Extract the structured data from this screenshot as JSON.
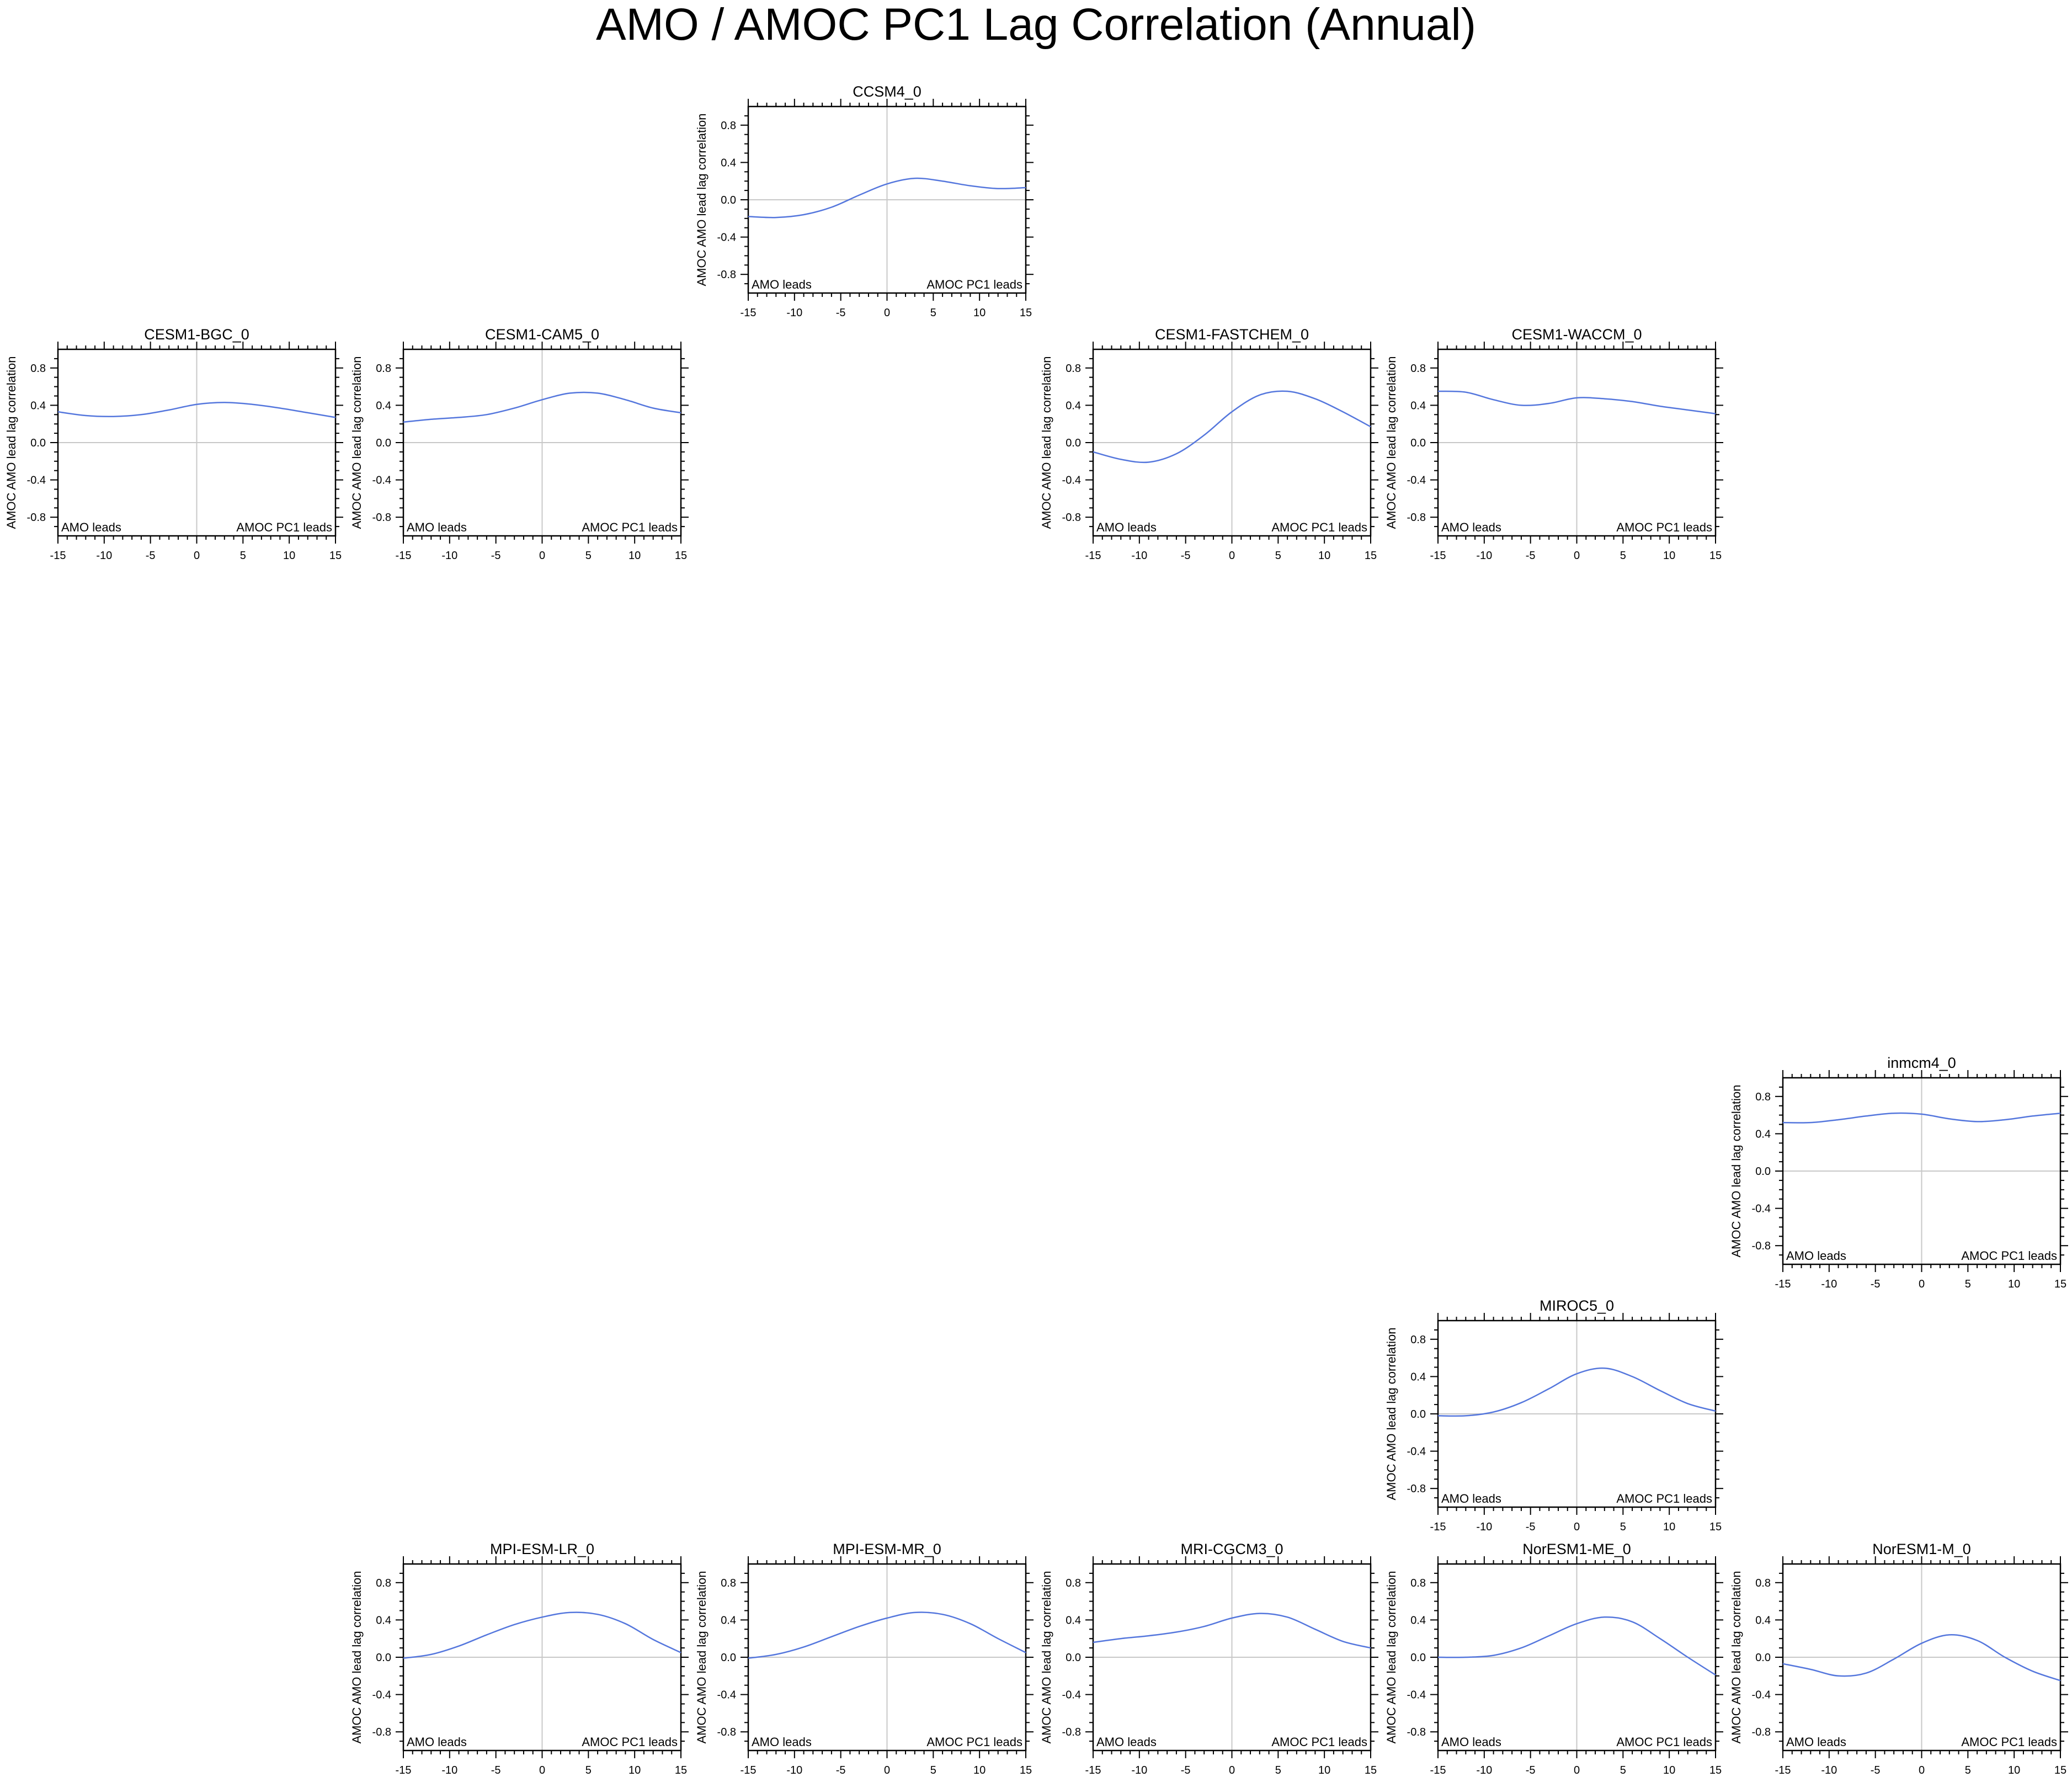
{
  "figure": {
    "title": "AMO / AMOC PC1 Lag Correlation (Annual)"
  },
  "colors": {
    "curve": "#5577dd",
    "zero_line": "#c8c8c8",
    "frame": "#000000"
  },
  "chart_data": [
    {
      "type": "line",
      "title": "CCSM4_0",
      "ylabel": "AMOC AMO lead lag correlation",
      "xlim": [
        -15,
        15
      ],
      "ylim": [
        -1,
        1
      ],
      "xticks": [
        "-15",
        "-10",
        "-5",
        "0",
        "5",
        "10",
        "15"
      ],
      "yticks": [
        "0.8",
        "0.4",
        "0.0",
        "-0.4",
        "-0.8"
      ],
      "left_annotation": "AMO leads",
      "right_annotation": "AMOC PC1 leads",
      "x": [
        -15,
        -12,
        -9,
        -6,
        -3,
        0,
        3,
        6,
        9,
        12,
        15
      ],
      "y": [
        -0.18,
        -0.19,
        -0.16,
        -0.08,
        0.05,
        0.17,
        0.23,
        0.2,
        0.15,
        0.12,
        0.13
      ]
    },
    {
      "type": "line",
      "title": "CESM1-BGC_0",
      "ylabel": "AMOC AMO lead lag correlation",
      "xlim": [
        -15,
        15
      ],
      "ylim": [
        -1,
        1
      ],
      "xticks": [
        "-15",
        "-10",
        "-5",
        "0",
        "5",
        "10",
        "15"
      ],
      "yticks": [
        "0.8",
        "0.4",
        "0.0",
        "-0.4",
        "-0.8"
      ],
      "left_annotation": "AMO leads",
      "right_annotation": "AMOC PC1 leads",
      "x": [
        -15,
        -12,
        -9,
        -6,
        -3,
        0,
        3,
        6,
        9,
        12,
        15
      ],
      "y": [
        0.33,
        0.29,
        0.28,
        0.3,
        0.35,
        0.41,
        0.43,
        0.41,
        0.37,
        0.32,
        0.27
      ]
    },
    {
      "type": "line",
      "title": "CESM1-CAM5_0",
      "ylabel": "AMOC AMO lead lag correlation",
      "xlim": [
        -15,
        15
      ],
      "ylim": [
        -1,
        1
      ],
      "xticks": [
        "-15",
        "-10",
        "-5",
        "0",
        "5",
        "10",
        "15"
      ],
      "yticks": [
        "0.8",
        "0.4",
        "0.0",
        "-0.4",
        "-0.8"
      ],
      "left_annotation": "AMO leads",
      "right_annotation": "AMOC PC1 leads",
      "x": [
        -15,
        -12,
        -9,
        -6,
        -3,
        0,
        3,
        6,
        9,
        12,
        15
      ],
      "y": [
        0.22,
        0.25,
        0.27,
        0.3,
        0.37,
        0.46,
        0.53,
        0.53,
        0.46,
        0.37,
        0.32
      ]
    },
    {
      "type": "line",
      "title": "CESM1-FASTCHEM_0",
      "ylabel": "AMOC AMO lead lag correlation",
      "xlim": [
        -15,
        15
      ],
      "ylim": [
        -1,
        1
      ],
      "xticks": [
        "-15",
        "-10",
        "-5",
        "0",
        "5",
        "10",
        "15"
      ],
      "yticks": [
        "0.8",
        "0.4",
        "0.0",
        "-0.4",
        "-0.8"
      ],
      "left_annotation": "AMO leads",
      "right_annotation": "AMOC PC1 leads",
      "x": [
        -15,
        -12,
        -9,
        -6,
        -3,
        0,
        3,
        6,
        9,
        12,
        15
      ],
      "y": [
        -0.1,
        -0.18,
        -0.21,
        -0.12,
        0.08,
        0.33,
        0.51,
        0.55,
        0.47,
        0.33,
        0.17
      ]
    },
    {
      "type": "line",
      "title": "CESM1-WACCM_0",
      "ylabel": "AMOC AMO lead lag correlation",
      "xlim": [
        -15,
        15
      ],
      "ylim": [
        -1,
        1
      ],
      "xticks": [
        "-15",
        "-10",
        "-5",
        "0",
        "5",
        "10",
        "15"
      ],
      "yticks": [
        "0.8",
        "0.4",
        "0.0",
        "-0.4",
        "-0.8"
      ],
      "left_annotation": "AMO leads",
      "right_annotation": "AMOC PC1 leads",
      "x": [
        -15,
        -12,
        -9,
        -6,
        -3,
        0,
        3,
        6,
        9,
        12,
        15
      ],
      "y": [
        0.55,
        0.54,
        0.46,
        0.4,
        0.42,
        0.48,
        0.47,
        0.44,
        0.39,
        0.35,
        0.31
      ]
    },
    {
      "type": "line",
      "title": "inmcm4_0",
      "ylabel": "AMOC AMO lead lag correlation",
      "xlim": [
        -15,
        15
      ],
      "ylim": [
        -1,
        1
      ],
      "xticks": [
        "-15",
        "-10",
        "-5",
        "0",
        "5",
        "10",
        "15"
      ],
      "yticks": [
        "0.8",
        "0.4",
        "0.0",
        "-0.4",
        "-0.8"
      ],
      "left_annotation": "AMO leads",
      "right_annotation": "AMOC PC1 leads",
      "x": [
        -15,
        -12,
        -9,
        -6,
        -3,
        0,
        3,
        6,
        9,
        12,
        15
      ],
      "y": [
        0.52,
        0.52,
        0.55,
        0.59,
        0.62,
        0.61,
        0.56,
        0.53,
        0.55,
        0.59,
        0.62
      ]
    },
    {
      "type": "line",
      "title": "MIROC5_0",
      "ylabel": "AMOC AMO lead lag correlation",
      "xlim": [
        -15,
        15
      ],
      "ylim": [
        -1,
        1
      ],
      "xticks": [
        "-15",
        "-10",
        "-5",
        "0",
        "5",
        "10",
        "15"
      ],
      "yticks": [
        "0.8",
        "0.4",
        "0.0",
        "-0.4",
        "-0.8"
      ],
      "left_annotation": "AMO leads",
      "right_annotation": "AMOC PC1 leads",
      "x": [
        -15,
        -12,
        -9,
        -6,
        -3,
        0,
        3,
        6,
        9,
        12,
        15
      ],
      "y": [
        -0.02,
        -0.02,
        0.02,
        0.12,
        0.27,
        0.43,
        0.49,
        0.4,
        0.25,
        0.11,
        0.03
      ]
    },
    {
      "type": "line",
      "title": "MPI-ESM-LR_0",
      "ylabel": "AMOC AMO lead lag correlation",
      "xlim": [
        -15,
        15
      ],
      "ylim": [
        -1,
        1
      ],
      "xticks": [
        "-15",
        "-10",
        "-5",
        "0",
        "5",
        "10",
        "15"
      ],
      "yticks": [
        "0.8",
        "0.4",
        "0.0",
        "-0.4",
        "-0.8"
      ],
      "left_annotation": "AMO leads",
      "right_annotation": "AMOC PC1 leads",
      "x": [
        -15,
        -12,
        -9,
        -6,
        -3,
        0,
        3,
        6,
        9,
        12,
        15
      ],
      "y": [
        -0.01,
        0.03,
        0.12,
        0.24,
        0.35,
        0.43,
        0.48,
        0.46,
        0.36,
        0.19,
        0.05
      ]
    },
    {
      "type": "line",
      "title": "MPI-ESM-MR_0",
      "ylabel": "AMOC AMO lead lag correlation",
      "xlim": [
        -15,
        15
      ],
      "ylim": [
        -1,
        1
      ],
      "xticks": [
        "-15",
        "-10",
        "-5",
        "0",
        "5",
        "10",
        "15"
      ],
      "yticks": [
        "0.8",
        "0.4",
        "0.0",
        "-0.4",
        "-0.8"
      ],
      "left_annotation": "AMO leads",
      "right_annotation": "AMOC PC1 leads",
      "x": [
        -15,
        -12,
        -9,
        -6,
        -3,
        0,
        3,
        6,
        9,
        12,
        15
      ],
      "y": [
        -0.01,
        0.03,
        0.11,
        0.22,
        0.33,
        0.42,
        0.48,
        0.46,
        0.36,
        0.2,
        0.05
      ]
    },
    {
      "type": "line",
      "title": "MRI-CGCM3_0",
      "ylabel": "AMOC AMO lead lag correlation",
      "xlim": [
        -15,
        15
      ],
      "ylim": [
        -1,
        1
      ],
      "xticks": [
        "-15",
        "-10",
        "-5",
        "0",
        "5",
        "10",
        "15"
      ],
      "yticks": [
        "0.8",
        "0.4",
        "0.0",
        "-0.4",
        "-0.8"
      ],
      "left_annotation": "AMO leads",
      "right_annotation": "AMOC PC1 leads",
      "x": [
        -15,
        -12,
        -9,
        -6,
        -3,
        0,
        3,
        6,
        9,
        12,
        15
      ],
      "y": [
        0.16,
        0.2,
        0.23,
        0.27,
        0.33,
        0.42,
        0.47,
        0.43,
        0.3,
        0.17,
        0.1
      ]
    },
    {
      "type": "line",
      "title": "NorESM1-ME_0",
      "ylabel": "AMOC AMO lead lag correlation",
      "xlim": [
        -15,
        15
      ],
      "ylim": [
        -1,
        1
      ],
      "xticks": [
        "-15",
        "-10",
        "-5",
        "0",
        "5",
        "10",
        "15"
      ],
      "yticks": [
        "0.8",
        "0.4",
        "0.0",
        "-0.4",
        "-0.8"
      ],
      "left_annotation": "AMO leads",
      "right_annotation": "AMOC PC1 leads",
      "x": [
        -15,
        -12,
        -9,
        -6,
        -3,
        0,
        3,
        6,
        9,
        12,
        15
      ],
      "y": [
        0.0,
        0.0,
        0.02,
        0.1,
        0.23,
        0.36,
        0.43,
        0.38,
        0.2,
        0.0,
        -0.19
      ]
    },
    {
      "type": "line",
      "title": "NorESM1-M_0",
      "ylabel": "AMOC AMO lead lag correlation",
      "xlim": [
        -15,
        15
      ],
      "ylim": [
        -1,
        1
      ],
      "xticks": [
        "-15",
        "-10",
        "-5",
        "0",
        "5",
        "10",
        "15"
      ],
      "yticks": [
        "0.8",
        "0.4",
        "0.0",
        "-0.4",
        "-0.8"
      ],
      "left_annotation": "AMO leads",
      "right_annotation": "AMOC PC1 leads",
      "x": [
        -15,
        -12,
        -9,
        -6,
        -3,
        0,
        3,
        6,
        9,
        12,
        15
      ],
      "y": [
        -0.07,
        -0.13,
        -0.2,
        -0.17,
        -0.02,
        0.15,
        0.24,
        0.18,
        0.0,
        -0.15,
        -0.25
      ]
    }
  ]
}
